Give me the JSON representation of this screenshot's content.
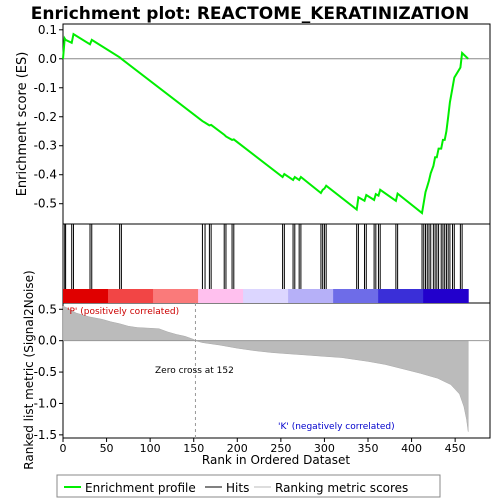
{
  "chart_data": {
    "type": "line",
    "title": "Enrichment plot: REACTOME_KERATINIZATION",
    "top_panel": {
      "ylabel": "Enrichment score (ES)",
      "ylim": [
        -0.57,
        0.12
      ],
      "yticks": [
        "0.1",
        "0.0",
        "-0.1",
        "-0.2",
        "-0.3",
        "-0.4",
        "-0.5"
      ],
      "ytick_values": [
        0.1,
        0.0,
        -0.1,
        -0.2,
        -0.3,
        -0.4,
        -0.5
      ],
      "series": [
        {
          "name": "Enrichment profile",
          "color": "#00ee00",
          "x": [
            0,
            2,
            3,
            10,
            12,
            31,
            33,
            65,
            67,
            160,
            163,
            168,
            170,
            185,
            187,
            194,
            196,
            252,
            254,
            264,
            266,
            271,
            273,
            296,
            298,
            300,
            302,
            337,
            339,
            346,
            348,
            357,
            359,
            362,
            364,
            382,
            384,
            412,
            414,
            416,
            418,
            420,
            422,
            425,
            427,
            429,
            431,
            434,
            436,
            438,
            440,
            442,
            444,
            447,
            449,
            456,
            458,
            465
          ],
          "y": [
            0.0,
            0.07,
            0.065,
            0.055,
            0.085,
            0.05,
            0.065,
            0.005,
            0.0,
            -0.215,
            -0.22,
            -0.23,
            -0.228,
            -0.262,
            -0.268,
            -0.28,
            -0.278,
            -0.408,
            -0.398,
            -0.418,
            -0.408,
            -0.418,
            -0.408,
            -0.463,
            -0.452,
            -0.448,
            -0.438,
            -0.52,
            -0.478,
            -0.49,
            -0.47,
            -0.487,
            -0.467,
            -0.472,
            -0.452,
            -0.49,
            -0.465,
            -0.532,
            -0.495,
            -0.46,
            -0.44,
            -0.42,
            -0.395,
            -0.37,
            -0.34,
            -0.34,
            -0.31,
            -0.31,
            -0.28,
            -0.28,
            -0.25,
            -0.2,
            -0.15,
            -0.1,
            -0.065,
            -0.03,
            0.02,
            0.0
          ]
        }
      ]
    },
    "hits_panel": {
      "hit_positions": [
        2,
        3,
        10,
        12,
        31,
        33,
        65,
        67,
        160,
        163,
        168,
        170,
        185,
        187,
        194,
        196,
        252,
        254,
        264,
        266,
        271,
        273,
        296,
        298,
        300,
        302,
        337,
        339,
        346,
        348,
        357,
        359,
        362,
        364,
        382,
        384,
        412,
        414,
        416,
        418,
        420,
        422,
        425,
        427,
        429,
        431,
        434,
        436,
        438,
        440,
        442,
        444,
        447,
        449,
        456,
        458
      ],
      "color_bar_colors": [
        "#e00000",
        "#f24545",
        "#fa7a7a",
        "#ffc0ee",
        "#dcd6ff",
        "#b6b0f8",
        "#6e6ce8",
        "#3a2fd8",
        "#2200cc"
      ]
    },
    "metric_panel": {
      "ylabel": "Ranked list metric (Signal2Noise)",
      "xlabel": "Rank in Ordered Dataset",
      "xlim": [
        0,
        490
      ],
      "xticks": [
        "0",
        "50",
        "100",
        "150",
        "200",
        "250",
        "300",
        "350",
        "400",
        "450"
      ],
      "xtick_values": [
        0,
        50,
        100,
        150,
        200,
        250,
        300,
        350,
        400,
        450
      ],
      "ylim": [
        -1.55,
        0.6
      ],
      "yticks": [
        "0.5",
        "0.0",
        "-0.5",
        "-1.0",
        "-1.5"
      ],
      "ytick_values": [
        0.5,
        0.0,
        -0.5,
        -1.0,
        -1.5
      ],
      "metric_x": [
        0,
        5,
        15,
        30,
        45,
        55,
        65,
        75,
        85,
        110,
        120,
        130,
        140,
        150,
        152,
        160,
        180,
        200,
        220,
        240,
        260,
        280,
        300,
        320,
        335,
        350,
        370,
        390,
        410,
        430,
        445,
        455,
        460,
        463,
        465
      ],
      "metric_y": [
        0.55,
        0.52,
        0.44,
        0.38,
        0.34,
        0.3,
        0.27,
        0.23,
        0.21,
        0.19,
        0.14,
        0.1,
        0.07,
        0.02,
        0.0,
        -0.03,
        -0.07,
        -0.12,
        -0.16,
        -0.19,
        -0.21,
        -0.23,
        -0.25,
        -0.27,
        -0.3,
        -0.33,
        -0.38,
        -0.45,
        -0.52,
        -0.6,
        -0.7,
        -0.85,
        -1.05,
        -1.25,
        -1.45
      ],
      "zero_cross_label": "Zero cross at 152",
      "zero_cross_rank": 152,
      "positive_label": "'P' (positively correlated)",
      "negative_label": "'K' (negatively correlated)"
    },
    "legend": {
      "placement": "bottom",
      "items": [
        {
          "label": "Enrichment profile",
          "color": "#00ee00",
          "kind": "line"
        },
        {
          "label": "Hits",
          "color": "#000000",
          "kind": "line"
        },
        {
          "label": "Ranking metric scores",
          "color": "#bbbbbb",
          "kind": "line"
        }
      ]
    }
  }
}
